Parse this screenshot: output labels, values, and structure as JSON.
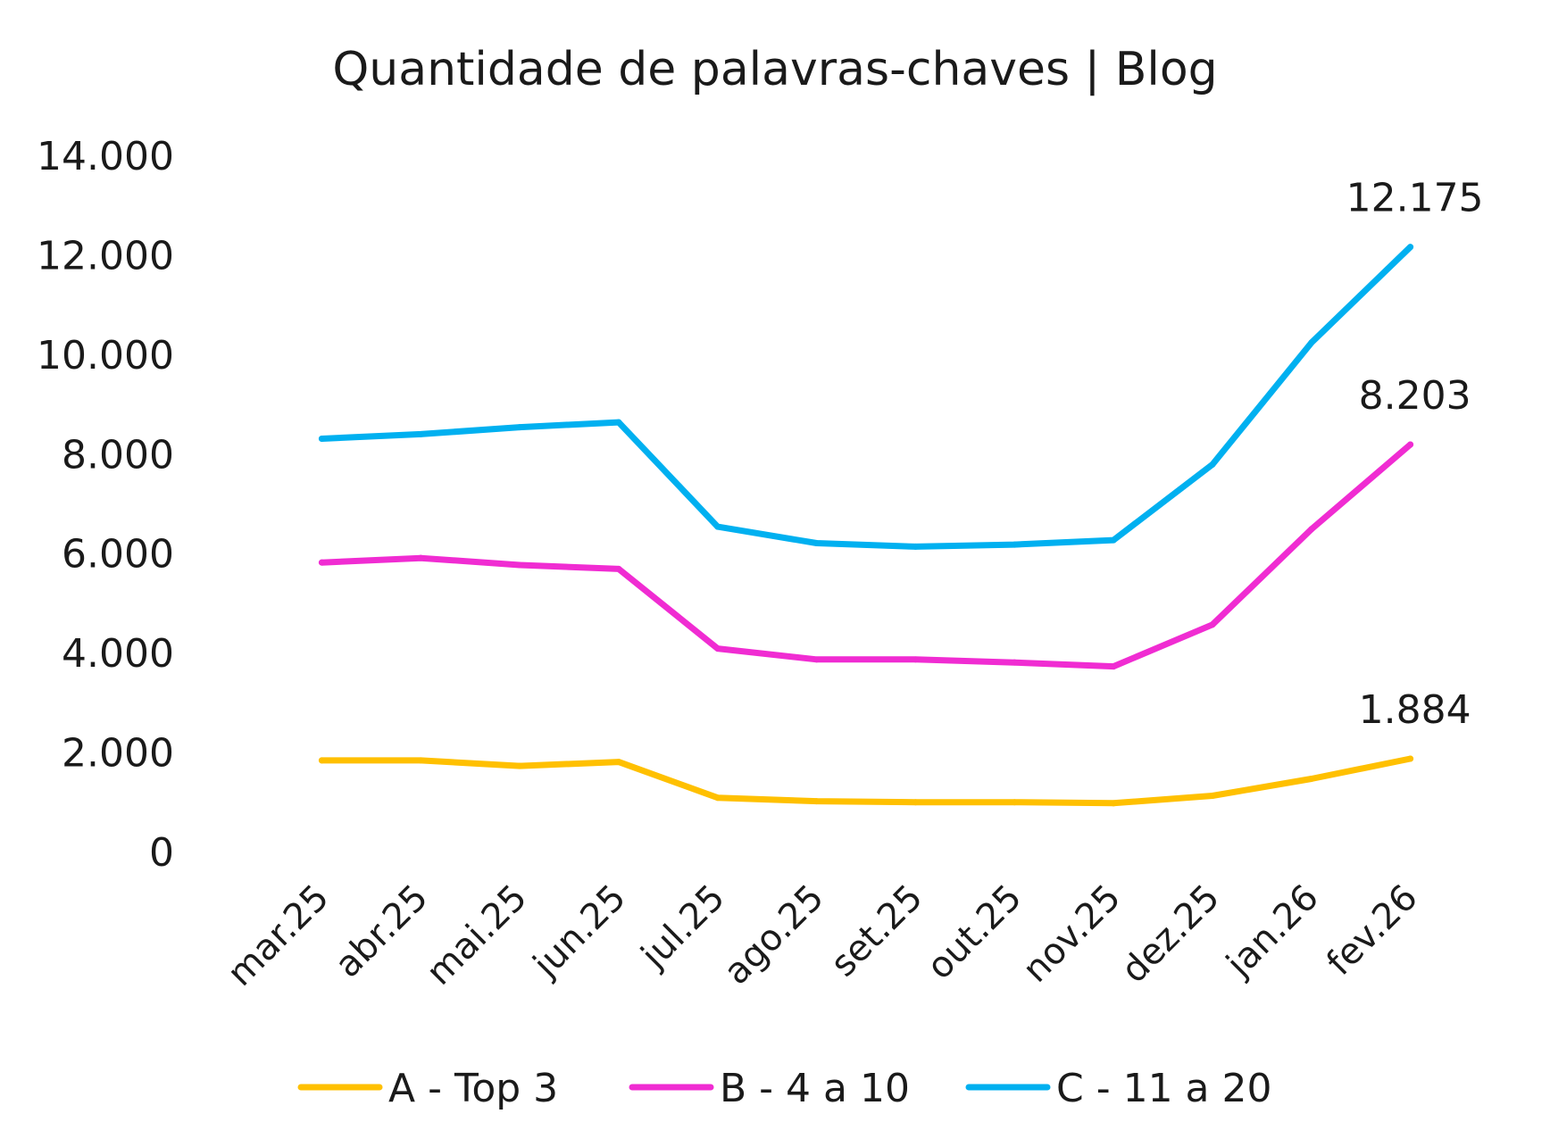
{
  "chart_data": {
    "type": "line",
    "title": "Quantidade de palavras-chaves | Blog",
    "xlabel": "",
    "ylabel": "",
    "categories": [
      "mar.25",
      "abr.25",
      "mai.25",
      "jun.25",
      "jul.25",
      "ago.25",
      "set.25",
      "out.25",
      "nov.25",
      "dez.25",
      "jan.26",
      "fev.26"
    ],
    "ylim": [
      0,
      14000
    ],
    "yticks": [
      0,
      2000,
      4000,
      6000,
      8000,
      10000,
      12000,
      14000
    ],
    "ytick_labels": [
      "0",
      "2.000",
      "4.000",
      "6.000",
      "8.000",
      "10.000",
      "12.000",
      "14.000"
    ],
    "grid": false,
    "legend_position": "bottom",
    "series": [
      {
        "name": "A - Top 3",
        "color": "#FFC000",
        "values": [
          1850,
          1850,
          1740,
          1820,
          1100,
          1030,
          1010,
          1010,
          990,
          1140,
          1480,
          1884
        ],
        "end_label": "1.884"
      },
      {
        "name": "B - 4 a 10",
        "color": "#F02CD2",
        "values": [
          5830,
          5920,
          5780,
          5700,
          4100,
          3880,
          3880,
          3820,
          3740,
          4580,
          6500,
          8203
        ],
        "end_label": "8.203"
      },
      {
        "name": "C - 11 a 20",
        "color": "#00B0F0",
        "values": [
          8320,
          8410,
          8550,
          8650,
          6550,
          6220,
          6150,
          6190,
          6280,
          7800,
          10250,
          12175
        ],
        "end_label": "12.175"
      }
    ]
  }
}
